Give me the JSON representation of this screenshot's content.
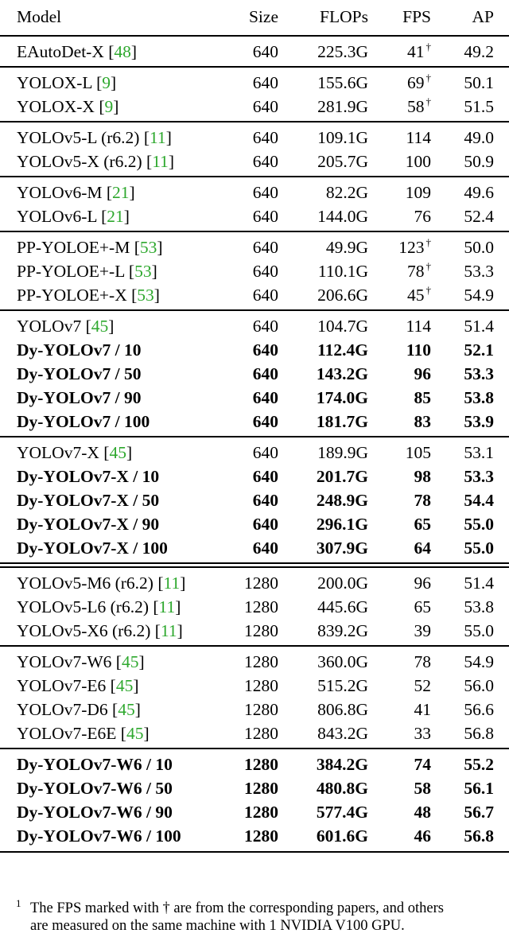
{
  "header": {
    "model": "Model",
    "size": "Size",
    "flops": "FLOPs",
    "fps": "FPS",
    "ap": "AP"
  },
  "groups": [
    {
      "rows": [
        {
          "model": "EAutoDet-X",
          "ref": "48",
          "size": "640",
          "flops": "225.3G",
          "fps": "41",
          "dagger": "†",
          "ap": "49.2"
        }
      ]
    },
    {
      "rows": [
        {
          "model": "YOLOX-L",
          "ref": "9",
          "size": "640",
          "flops": "155.6G",
          "fps": "69",
          "dagger": "†",
          "ap": "50.1"
        },
        {
          "model": "YOLOX-X",
          "ref": "9",
          "size": "640",
          "flops": "281.9G",
          "fps": "58",
          "dagger": "†",
          "ap": "51.5"
        }
      ]
    },
    {
      "rows": [
        {
          "model": "YOLOv5-L (r6.2)",
          "ref": "11",
          "size": "640",
          "flops": "109.1G",
          "fps": "114",
          "ap": "49.0"
        },
        {
          "model": "YOLOv5-X (r6.2)",
          "ref": "11",
          "size": "640",
          "flops": "205.7G",
          "fps": "100",
          "ap": "50.9"
        }
      ]
    },
    {
      "rows": [
        {
          "model": "YOLOv6-M",
          "ref": "21",
          "size": "640",
          "flops": "82.2G",
          "fps": "109",
          "ap": "49.6"
        },
        {
          "model": "YOLOv6-L",
          "ref": "21",
          "size": "640",
          "flops": "144.0G",
          "fps": "76",
          "ap": "52.4"
        }
      ]
    },
    {
      "rows": [
        {
          "model": "PP-YOLOE+-M",
          "ref": "53",
          "size": "640",
          "flops": "49.9G",
          "fps": "123",
          "dagger": "†",
          "ap": "50.0"
        },
        {
          "model": "PP-YOLOE+-L",
          "ref": "53",
          "size": "640",
          "flops": "110.1G",
          "fps": "78",
          "dagger": "†",
          "ap": "53.3"
        },
        {
          "model": "PP-YOLOE+-X",
          "ref": "53",
          "size": "640",
          "flops": "206.6G",
          "fps": "45",
          "dagger": "†",
          "ap": "54.9"
        }
      ]
    },
    {
      "rows": [
        {
          "model": "YOLOv7",
          "ref": "45",
          "size": "640",
          "flops": "104.7G",
          "fps": "114",
          "ap": "51.4"
        },
        {
          "model": "Dy-YOLOv7 / 10",
          "bold": true,
          "size": "640",
          "flops": "112.4G",
          "fps": "110",
          "ap": "52.1"
        },
        {
          "model": "Dy-YOLOv7 / 50",
          "bold": true,
          "size": "640",
          "flops": "143.2G",
          "fps": "96",
          "ap": "53.3"
        },
        {
          "model": "Dy-YOLOv7 / 90",
          "bold": true,
          "size": "640",
          "flops": "174.0G",
          "fps": "85",
          "ap": "53.8"
        },
        {
          "model": "Dy-YOLOv7 / 100",
          "bold": true,
          "size": "640",
          "flops": "181.7G",
          "fps": "83",
          "ap": "53.9"
        }
      ]
    },
    {
      "rows": [
        {
          "model": "YOLOv7-X",
          "ref": "45",
          "size": "640",
          "flops": "189.9G",
          "fps": "105",
          "ap": "53.1"
        },
        {
          "model": "Dy-YOLOv7-X / 10",
          "bold": true,
          "size": "640",
          "flops": "201.7G",
          "fps": "98",
          "ap": "53.3"
        },
        {
          "model": "Dy-YOLOv7-X / 50",
          "bold": true,
          "size": "640",
          "flops": "248.9G",
          "fps": "78",
          "ap": "54.4"
        },
        {
          "model": "Dy-YOLOv7-X / 90",
          "bold": true,
          "size": "640",
          "flops": "296.1G",
          "fps": "65",
          "ap": "55.0"
        },
        {
          "model": "Dy-YOLOv7-X / 100",
          "bold": true,
          "size": "640",
          "flops": "307.9G",
          "fps": "64",
          "ap": "55.0"
        }
      ]
    },
    {
      "double_rule_before": true,
      "rows": [
        {
          "model": "YOLOv5-M6 (r6.2)",
          "ref": "11",
          "size": "1280",
          "flops": "200.0G",
          "fps": "96",
          "ap": "51.4"
        },
        {
          "model": "YOLOv5-L6 (r6.2)",
          "ref": "11",
          "size": "1280",
          "flops": "445.6G",
          "fps": "65",
          "ap": "53.8"
        },
        {
          "model": "YOLOv5-X6 (r6.2)",
          "ref": "11",
          "size": "1280",
          "flops": "839.2G",
          "fps": "39",
          "ap": "55.0"
        }
      ]
    },
    {
      "rows": [
        {
          "model": "YOLOv7-W6",
          "ref": "45",
          "size": "1280",
          "flops": "360.0G",
          "fps": "78",
          "ap": "54.9"
        },
        {
          "model": "YOLOv7-E6",
          "ref": "45",
          "size": "1280",
          "flops": "515.2G",
          "fps": "52",
          "ap": "56.0"
        },
        {
          "model": "YOLOv7-D6",
          "ref": "45",
          "size": "1280",
          "flops": "806.8G",
          "fps": "41",
          "ap": "56.6"
        },
        {
          "model": "YOLOv7-E6E",
          "ref": "45",
          "size": "1280",
          "flops": "843.2G",
          "fps": "33",
          "ap": "56.8"
        }
      ]
    },
    {
      "rows": [
        {
          "model": "Dy-YOLOv7-W6 / 10",
          "bold": true,
          "size": "1280",
          "flops": "384.2G",
          "fps": "74",
          "ap": "55.2"
        },
        {
          "model": "Dy-YOLOv7-W6 / 50",
          "bold": true,
          "size": "1280",
          "flops": "480.8G",
          "fps": "58",
          "ap": "56.1"
        },
        {
          "model": "Dy-YOLOv7-W6 / 90",
          "bold": true,
          "size": "1280",
          "flops": "577.4G",
          "fps": "48",
          "ap": "56.7"
        },
        {
          "model": "Dy-YOLOv7-W6 / 100",
          "bold": true,
          "size": "1280",
          "flops": "601.6G",
          "fps": "46",
          "ap": "56.8"
        }
      ]
    }
  ],
  "footnote": {
    "mark": "1",
    "line1": "The FPS marked with † are from the corresponding papers, and others",
    "line2": "are measured on the same machine with 1 NVIDIA V100 GPU."
  }
}
